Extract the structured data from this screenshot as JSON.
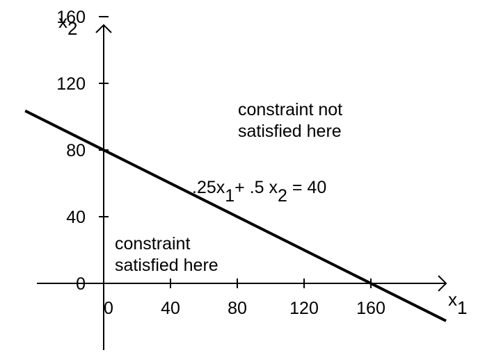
{
  "chart_data": {
    "type": "line",
    "title": "",
    "xlabel": "x",
    "xlabel_subscript": "1",
    "ylabel": "x",
    "ylabel_subscript": "2",
    "x_ticks": [
      "0",
      "40",
      "80",
      "120",
      "160"
    ],
    "y_ticks": [
      "0",
      "40",
      "80",
      "120",
      "160"
    ],
    "xlim": [
      -40,
      205
    ],
    "ylim": [
      -40,
      155
    ],
    "grid": false,
    "series": [
      {
        "x": [
          -47,
          205
        ],
        "y": [
          103.5,
          -22.5
        ],
        "color": "#000000"
      }
    ],
    "equation": {
      "p1": ".25x",
      "s1": "1",
      "p2": "+ .5 x",
      "s2": "2",
      "p3": " = 40"
    },
    "annotations": {
      "not_satisfied_line1": "constraint not",
      "not_satisfied_line2": "satisfied here",
      "satisfied_line1": "constraint",
      "satisfied_line2": "satisfied here"
    }
  }
}
